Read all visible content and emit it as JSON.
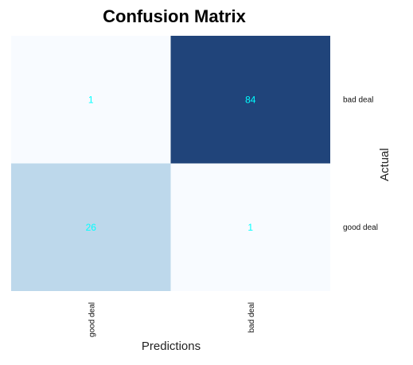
{
  "chart_data": {
    "type": "heatmap",
    "title": "Confusion Matrix",
    "xlabel": "Predictions",
    "ylabel": "Actual",
    "x_categories": [
      "good deal",
      "bad deal"
    ],
    "y_categories": [
      "bad deal",
      "good deal"
    ],
    "values": [
      [
        1,
        84
      ],
      [
        26,
        1
      ]
    ],
    "colorscale": "Blues",
    "value_range": [
      1,
      84
    ],
    "annotation_color": "#00ffff",
    "x_tick_rotation": "vertical",
    "y_tick_position": "right",
    "grid": false,
    "legend": "none"
  }
}
